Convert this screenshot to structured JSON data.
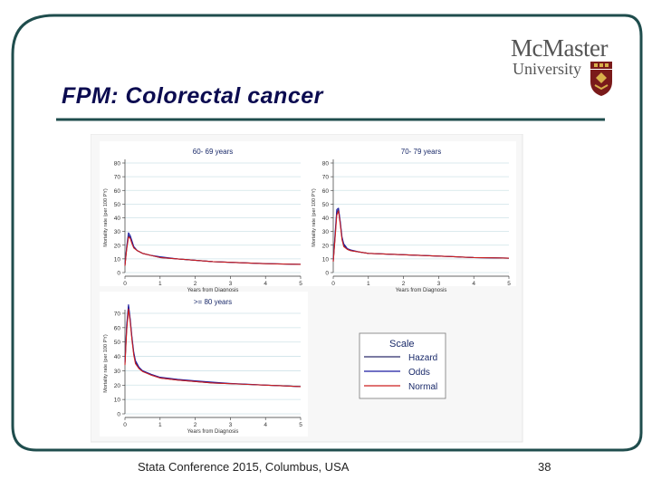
{
  "slide": {
    "title": "FPM: Colorectal cancer",
    "logo_line1": "McMaster",
    "logo_line2": "University",
    "footer": "Stata Conference 2015, Columbus, USA",
    "page_number": "38",
    "colors": {
      "title": "#0b0b50",
      "frame": "#1f4d4d",
      "rule": "#1f4d4d"
    }
  },
  "chart_data": [
    {
      "type": "line",
      "panel_title": "60- 69 years",
      "ylabel": "Mortality rate (per 100 PY)",
      "xlabel": "Years from Diagnosis",
      "yticks": [
        0,
        10,
        20,
        30,
        40,
        50,
        60,
        70,
        80
      ],
      "xticks": [
        0,
        1,
        2,
        3,
        4,
        5
      ],
      "ylim": [
        0,
        80
      ],
      "xlim": [
        0,
        5
      ],
      "series": [
        {
          "name": "Hazard",
          "color": "#2a2a6a",
          "points": [
            [
              0,
              5
            ],
            [
              0.05,
              18
            ],
            [
              0.1,
              27
            ],
            [
              0.15,
              26
            ],
            [
              0.2,
              22
            ],
            [
              0.25,
              19
            ],
            [
              0.35,
              16
            ],
            [
              0.5,
              14
            ],
            [
              0.75,
              12.5
            ],
            [
              1,
              11
            ],
            [
              1.5,
              10
            ],
            [
              2,
              9
            ],
            [
              2.5,
              8
            ],
            [
              3,
              7.5
            ],
            [
              3.5,
              7
            ],
            [
              4,
              6.5
            ],
            [
              4.5,
              6.2
            ],
            [
              5,
              6
            ]
          ]
        },
        {
          "name": "Odds",
          "color": "#1a1aa0",
          "points": [
            [
              0,
              6
            ],
            [
              0.05,
              19
            ],
            [
              0.1,
              29
            ],
            [
              0.15,
              27
            ],
            [
              0.2,
              23
            ],
            [
              0.25,
              19
            ],
            [
              0.35,
              16
            ],
            [
              0.5,
              14
            ],
            [
              0.75,
              12.5
            ],
            [
              1,
              11.5
            ],
            [
              1.5,
              10
            ],
            [
              2,
              9
            ],
            [
              2.5,
              8
            ],
            [
              3,
              7.5
            ],
            [
              3.5,
              7
            ],
            [
              4,
              6.6
            ],
            [
              4.5,
              6.3
            ],
            [
              5,
              6
            ]
          ]
        },
        {
          "name": "Normal",
          "color": "#cc1f1f",
          "points": [
            [
              0,
              5
            ],
            [
              0.05,
              17
            ],
            [
              0.1,
              26
            ],
            [
              0.15,
              25
            ],
            [
              0.2,
              21
            ],
            [
              0.25,
              18
            ],
            [
              0.35,
              16
            ],
            [
              0.5,
              14
            ],
            [
              0.75,
              12.5
            ],
            [
              1,
              11
            ],
            [
              1.5,
              10
            ],
            [
              2,
              9
            ],
            [
              2.5,
              8
            ],
            [
              3,
              7.5
            ],
            [
              3.5,
              7
            ],
            [
              4,
              6.5
            ],
            [
              4.5,
              6.2
            ],
            [
              5,
              6
            ]
          ]
        }
      ]
    },
    {
      "type": "line",
      "panel_title": "70- 79 years",
      "ylabel": "Mortality rate (per 100 PY)",
      "xlabel": "Years from Diagnosis",
      "yticks": [
        0,
        10,
        20,
        30,
        40,
        50,
        60,
        70,
        80
      ],
      "xticks": [
        0,
        1,
        2,
        3,
        4,
        5
      ],
      "ylim": [
        0,
        80
      ],
      "xlim": [
        0,
        5
      ],
      "series": [
        {
          "name": "Hazard",
          "color": "#2a2a6a",
          "points": [
            [
              0,
              8
            ],
            [
              0.05,
              25
            ],
            [
              0.1,
              44
            ],
            [
              0.15,
              46
            ],
            [
              0.2,
              36
            ],
            [
              0.25,
              25
            ],
            [
              0.3,
              20
            ],
            [
              0.4,
              17
            ],
            [
              0.5,
              16
            ],
            [
              0.75,
              15
            ],
            [
              1,
              14
            ],
            [
              1.5,
              13.5
            ],
            [
              2,
              13
            ],
            [
              2.5,
              12.5
            ],
            [
              3,
              12
            ],
            [
              3.5,
              11.5
            ],
            [
              4,
              11
            ],
            [
              4.5,
              10.8
            ],
            [
              5,
              10.5
            ]
          ]
        },
        {
          "name": "Odds",
          "color": "#1a1aa0",
          "points": [
            [
              0,
              9
            ],
            [
              0.05,
              27
            ],
            [
              0.1,
              46
            ],
            [
              0.15,
              47
            ],
            [
              0.2,
              37
            ],
            [
              0.25,
              26
            ],
            [
              0.3,
              21
            ],
            [
              0.4,
              17.5
            ],
            [
              0.5,
              16.5
            ],
            [
              0.75,
              15
            ],
            [
              1,
              14
            ],
            [
              1.5,
              13.5
            ],
            [
              2,
              13
            ],
            [
              2.5,
              12.5
            ],
            [
              3,
              12
            ],
            [
              3.5,
              11.5
            ],
            [
              4,
              11
            ],
            [
              4.5,
              10.8
            ],
            [
              5,
              10.5
            ]
          ]
        },
        {
          "name": "Normal",
          "color": "#cc1f1f",
          "points": [
            [
              0,
              8
            ],
            [
              0.05,
              24
            ],
            [
              0.1,
              42
            ],
            [
              0.15,
              45
            ],
            [
              0.2,
              35
            ],
            [
              0.25,
              24
            ],
            [
              0.3,
              19
            ],
            [
              0.4,
              17
            ],
            [
              0.5,
              16
            ],
            [
              0.75,
              15
            ],
            [
              1,
              14
            ],
            [
              1.5,
              13.5
            ],
            [
              2,
              13
            ],
            [
              2.5,
              12.5
            ],
            [
              3,
              12
            ],
            [
              3.5,
              11.5
            ],
            [
              4,
              11
            ],
            [
              4.5,
              10.8
            ],
            [
              5,
              10.5
            ]
          ]
        }
      ]
    },
    {
      "type": "line",
      "panel_title": ">= 80 years",
      "ylabel": "Mortality rate (per 100 PY)",
      "xlabel": "Years from Diagnosis",
      "yticks": [
        0,
        10,
        20,
        30,
        40,
        50,
        60,
        70
      ],
      "xticks": [
        0,
        1,
        2,
        3,
        4,
        5
      ],
      "ylim": [
        0,
        70
      ],
      "xlim": [
        0,
        5
      ],
      "series": [
        {
          "name": "Hazard",
          "color": "#2a2a6a",
          "points": [
            [
              0,
              35
            ],
            [
              0.05,
              60
            ],
            [
              0.1,
              75
            ],
            [
              0.15,
              65
            ],
            [
              0.2,
              52
            ],
            [
              0.25,
              42
            ],
            [
              0.3,
              36
            ],
            [
              0.4,
              32
            ],
            [
              0.5,
              30
            ],
            [
              0.75,
              27
            ],
            [
              1,
              25
            ],
            [
              1.5,
              23.5
            ],
            [
              2,
              22.5
            ],
            [
              2.5,
              21.5
            ],
            [
              3,
              21
            ],
            [
              3.5,
              20.5
            ],
            [
              4,
              20
            ],
            [
              4.5,
              19.5
            ],
            [
              5,
              19
            ]
          ]
        },
        {
          "name": "Odds",
          "color": "#1a1aa0",
          "points": [
            [
              0,
              36
            ],
            [
              0.05,
              62
            ],
            [
              0.1,
              76
            ],
            [
              0.15,
              66
            ],
            [
              0.2,
              53
            ],
            [
              0.25,
              43
            ],
            [
              0.3,
              37
            ],
            [
              0.4,
              32.5
            ],
            [
              0.5,
              30
            ],
            [
              0.75,
              27.5
            ],
            [
              1,
              25.5
            ],
            [
              1.5,
              24
            ],
            [
              2,
              23
            ],
            [
              2.5,
              22
            ],
            [
              3,
              21.2
            ],
            [
              3.5,
              20.6
            ],
            [
              4,
              20
            ],
            [
              4.5,
              19.5
            ],
            [
              5,
              19
            ]
          ]
        },
        {
          "name": "Normal",
          "color": "#cc1f1f",
          "points": [
            [
              0,
              34
            ],
            [
              0.05,
              58
            ],
            [
              0.1,
              73
            ],
            [
              0.15,
              64
            ],
            [
              0.2,
              51
            ],
            [
              0.25,
              41
            ],
            [
              0.3,
              35
            ],
            [
              0.4,
              31.5
            ],
            [
              0.5,
              29.5
            ],
            [
              0.75,
              27
            ],
            [
              1,
              25
            ],
            [
              1.5,
              23.5
            ],
            [
              2,
              22.5
            ],
            [
              2.5,
              21.5
            ],
            [
              3,
              21
            ],
            [
              3.5,
              20.5
            ],
            [
              4,
              20
            ],
            [
              4.5,
              19.5
            ],
            [
              5,
              19
            ]
          ]
        }
      ]
    }
  ],
  "legend": {
    "title": "Scale",
    "entries": [
      {
        "label": "Hazard",
        "color": "#2a2a6a"
      },
      {
        "label": "Odds",
        "color": "#1a1aa0"
      },
      {
        "label": "Normal",
        "color": "#cc1f1f"
      }
    ]
  }
}
